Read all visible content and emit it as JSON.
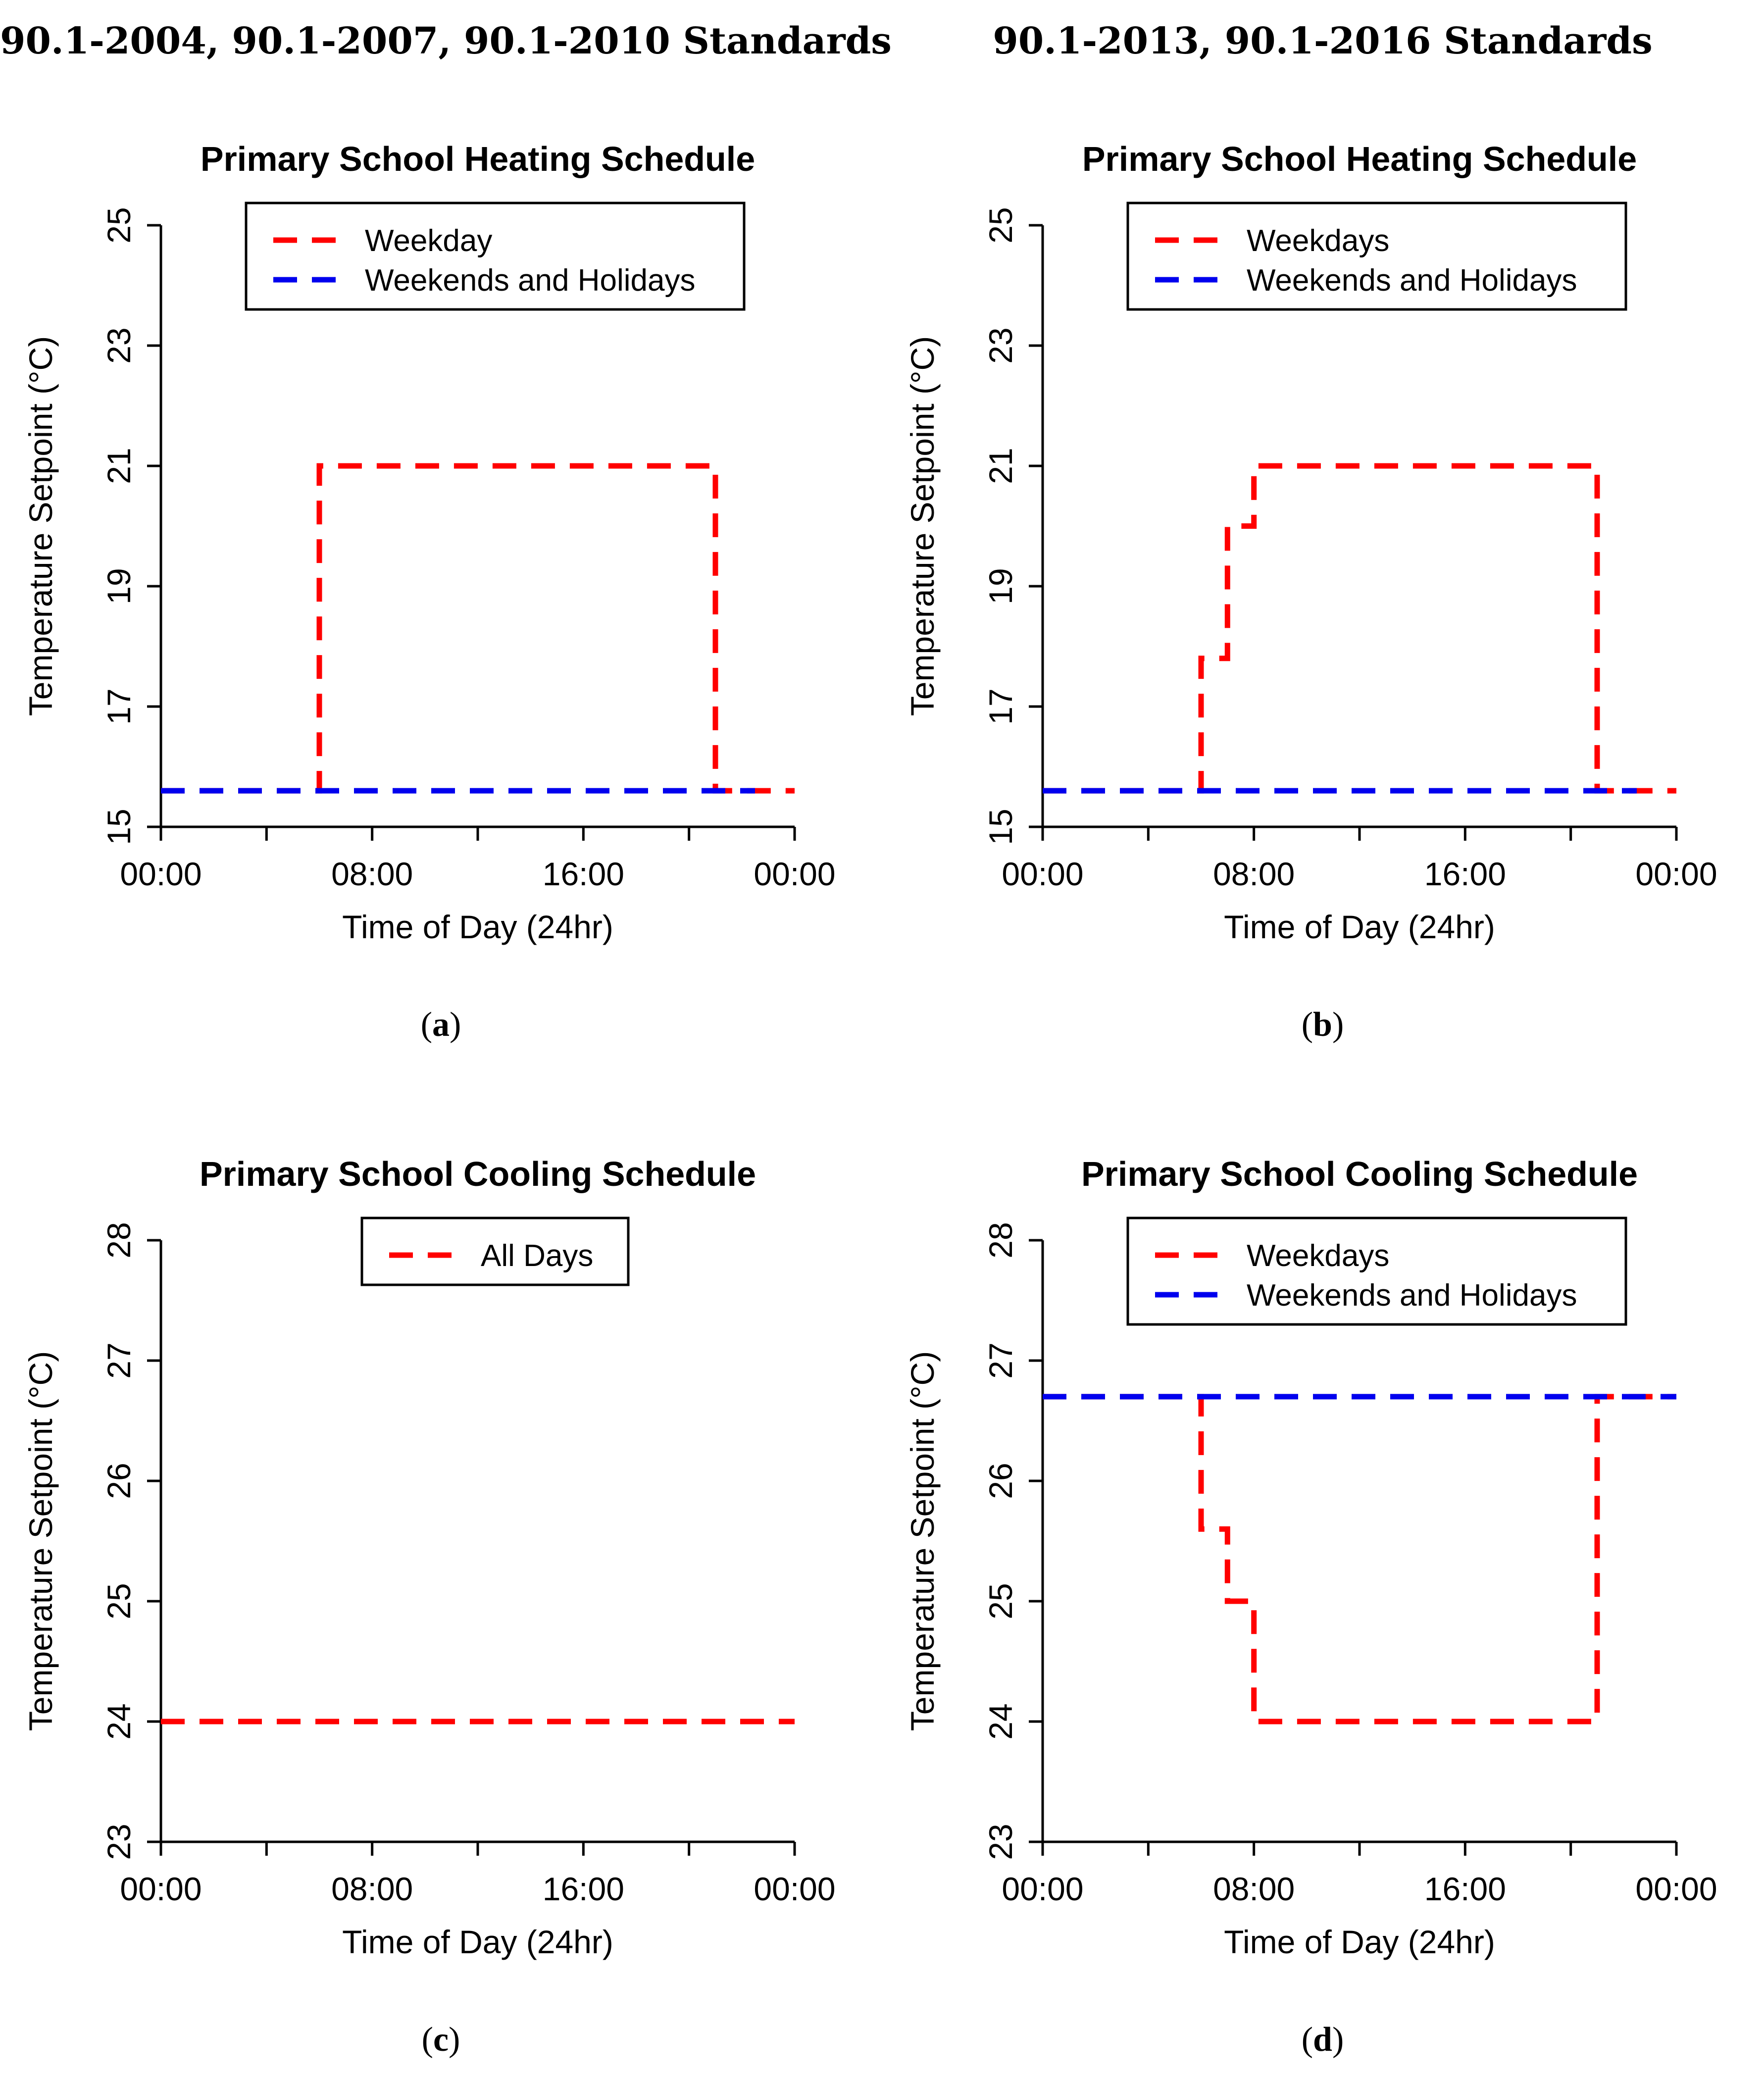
{
  "headers": {
    "left": "90.1-2004, 90.1-2007, 90.1-2010 Standards",
    "right": "90.1-2013, 90.1-2016 Standards"
  },
  "captions": {
    "a": "a",
    "b": "b",
    "c": "c",
    "d": "d"
  },
  "colors": {
    "weekday": "#ff0000",
    "weekend": "#0000ee"
  },
  "chart_data": [
    {
      "id": "a",
      "type": "line",
      "title": "Primary School Heating Schedule",
      "xlabel": "Time of Day (24hr)",
      "ylabel": "Temperature Setpoint (°C)",
      "xlim": [
        0,
        24
      ],
      "ylim": [
        15,
        25
      ],
      "xticks": [
        0,
        4,
        8,
        12,
        16,
        20,
        24
      ],
      "xtick_labels": {
        "0": "00:00",
        "8": "08:00",
        "16": "16:00",
        "24": "00:00"
      },
      "yticks": [
        15,
        17,
        19,
        21,
        23,
        25
      ],
      "grid": false,
      "legend": "top-center",
      "series": [
        {
          "name": "Weekday",
          "color": "#ff0000",
          "style": "step",
          "points": [
            [
              0,
              15.6
            ],
            [
              6,
              15.6
            ],
            [
              6,
              21
            ],
            [
              21,
              21
            ],
            [
              21,
              15.6
            ],
            [
              24,
              15.6
            ]
          ]
        },
        {
          "name": "Weekends and Holidays",
          "color": "#0000ee",
          "style": "step",
          "points": [
            [
              0,
              15.6
            ],
            [
              22.5,
              15.6
            ]
          ]
        }
      ]
    },
    {
      "id": "b",
      "type": "line",
      "title": "Primary School Heating Schedule",
      "xlabel": "Time of Day (24hr)",
      "ylabel": "Temperature Setpoint (°C)",
      "xlim": [
        0,
        24
      ],
      "ylim": [
        15,
        25
      ],
      "xticks": [
        0,
        4,
        8,
        12,
        16,
        20,
        24
      ],
      "xtick_labels": {
        "0": "00:00",
        "8": "08:00",
        "16": "16:00",
        "24": "00:00"
      },
      "yticks": [
        15,
        17,
        19,
        21,
        23,
        25
      ],
      "grid": false,
      "legend": "top-center",
      "series": [
        {
          "name": "Weekdays",
          "color": "#ff0000",
          "style": "step",
          "points": [
            [
              0,
              15.6
            ],
            [
              6,
              15.6
            ],
            [
              6,
              17.8
            ],
            [
              7,
              17.8
            ],
            [
              7,
              20
            ],
            [
              8,
              20
            ],
            [
              8,
              21
            ],
            [
              21,
              21
            ],
            [
              21,
              15.6
            ],
            [
              24,
              15.6
            ]
          ]
        },
        {
          "name": "Weekends and Holidays",
          "color": "#0000ee",
          "style": "step",
          "points": [
            [
              0,
              15.6
            ],
            [
              22.5,
              15.6
            ]
          ]
        }
      ]
    },
    {
      "id": "c",
      "type": "line",
      "title": "Primary School Cooling Schedule",
      "xlabel": "Time of Day (24hr)",
      "ylabel": "Temperature Setpoint (°C)",
      "xlim": [
        0,
        24
      ],
      "ylim": [
        23,
        28
      ],
      "xticks": [
        0,
        4,
        8,
        12,
        16,
        20,
        24
      ],
      "xtick_labels": {
        "0": "00:00",
        "8": "08:00",
        "16": "16:00",
        "24": "00:00"
      },
      "yticks": [
        23,
        24,
        25,
        26,
        27,
        28
      ],
      "grid": false,
      "legend": "top-center",
      "series": [
        {
          "name": "All Days",
          "color": "#ff0000",
          "style": "step",
          "points": [
            [
              0,
              24
            ],
            [
              24,
              24
            ]
          ]
        }
      ]
    },
    {
      "id": "d",
      "type": "line",
      "title": "Primary School Cooling Schedule",
      "xlabel": "Time of Day (24hr)",
      "ylabel": "Temperature Setpoint (°C)",
      "xlim": [
        0,
        24
      ],
      "ylim": [
        23,
        28
      ],
      "xticks": [
        0,
        4,
        8,
        12,
        16,
        20,
        24
      ],
      "xtick_labels": {
        "0": "00:00",
        "8": "08:00",
        "16": "16:00",
        "24": "00:00"
      },
      "yticks": [
        23,
        24,
        25,
        26,
        27,
        28
      ],
      "grid": false,
      "legend": "top-center",
      "series": [
        {
          "name": "Weekdays",
          "color": "#ff0000",
          "style": "step",
          "points": [
            [
              0,
              26.7
            ],
            [
              6,
              26.7
            ],
            [
              6,
              25.6
            ],
            [
              7,
              25.6
            ],
            [
              7,
              25
            ],
            [
              8,
              25
            ],
            [
              8,
              24
            ],
            [
              21,
              24
            ],
            [
              21,
              26.7
            ],
            [
              24,
              26.7
            ]
          ]
        },
        {
          "name": "Weekends and Holidays",
          "color": "#0000ee",
          "style": "step",
          "points": [
            [
              0,
              26.7
            ],
            [
              24,
              26.7
            ]
          ]
        }
      ]
    }
  ]
}
